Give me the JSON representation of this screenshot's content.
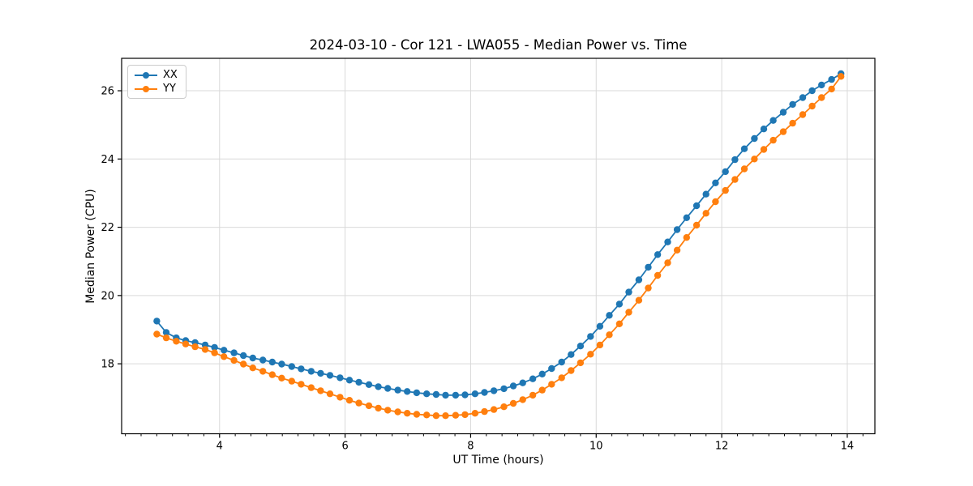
{
  "figure": {
    "title": "2024-03-10 - Cor 121 - LWA055 - Median Power vs. Time",
    "xlabel": "UT Time (hours)",
    "ylabel": "Median Power (CPU)"
  },
  "legend": {
    "items": [
      {
        "label": "XX",
        "color": "#1f77b4"
      },
      {
        "label": "YY",
        "color": "#ff7f0e"
      }
    ]
  },
  "chart_data": {
    "type": "line",
    "title": "2024-03-10 - Cor 121 - LWA055 - Median Power vs. Time",
    "xlabel": "UT Time (hours)",
    "ylabel": "Median Power (CPU)",
    "xlim": [
      2.44,
      14.44
    ],
    "ylim": [
      15.95,
      26.95
    ],
    "xticks": [
      4,
      6,
      8,
      10,
      12,
      14
    ],
    "x_minor_step": 0.25,
    "yticks": [
      18,
      20,
      22,
      24,
      26
    ],
    "grid": true,
    "grid_color": "#d9d9d9",
    "spine_color": "#000000",
    "legend_position": "upper left",
    "x": [
      3.0,
      3.15,
      3.31,
      3.46,
      3.61,
      3.77,
      3.92,
      4.07,
      4.23,
      4.38,
      4.53,
      4.69,
      4.84,
      4.99,
      5.15,
      5.3,
      5.46,
      5.61,
      5.76,
      5.92,
      6.07,
      6.22,
      6.38,
      6.53,
      6.68,
      6.84,
      6.99,
      7.14,
      7.3,
      7.45,
      7.6,
      7.76,
      7.91,
      8.07,
      8.22,
      8.37,
      8.53,
      8.68,
      8.83,
      8.99,
      9.14,
      9.29,
      9.45,
      9.6,
      9.75,
      9.91,
      10.06,
      10.21,
      10.37,
      10.52,
      10.68,
      10.83,
      10.98,
      11.14,
      11.29,
      11.44,
      11.6,
      11.75,
      11.9,
      12.06,
      12.21,
      12.36,
      12.52,
      12.67,
      12.82,
      12.98,
      13.13,
      13.29,
      13.44,
      13.59,
      13.75,
      13.9
    ],
    "series": [
      {
        "name": "XX",
        "color": "#1f77b4",
        "marker": "circle",
        "values": [
          19.25,
          18.92,
          18.76,
          18.68,
          18.62,
          18.55,
          18.48,
          18.4,
          18.32,
          18.24,
          18.17,
          18.11,
          18.05,
          17.99,
          17.92,
          17.85,
          17.78,
          17.72,
          17.66,
          17.59,
          17.52,
          17.46,
          17.39,
          17.33,
          17.28,
          17.23,
          17.19,
          17.15,
          17.12,
          17.1,
          17.08,
          17.08,
          17.09,
          17.12,
          17.16,
          17.21,
          17.27,
          17.35,
          17.44,
          17.56,
          17.7,
          17.86,
          18.05,
          18.27,
          18.52,
          18.8,
          19.1,
          19.42,
          19.75,
          20.1,
          20.46,
          20.83,
          21.2,
          21.57,
          21.93,
          22.28,
          22.63,
          22.97,
          23.3,
          23.63,
          23.98,
          24.3,
          24.6,
          24.88,
          25.13,
          25.37,
          25.6,
          25.8,
          26.0,
          26.17,
          26.33,
          26.5
        ]
      },
      {
        "name": "YY",
        "color": "#ff7f0e",
        "marker": "circle",
        "values": [
          18.87,
          18.76,
          18.66,
          18.58,
          18.5,
          18.42,
          18.32,
          18.21,
          18.1,
          17.99,
          17.88,
          17.78,
          17.68,
          17.58,
          17.49,
          17.4,
          17.3,
          17.21,
          17.12,
          17.02,
          16.93,
          16.85,
          16.77,
          16.7,
          16.64,
          16.59,
          16.55,
          16.52,
          16.5,
          16.48,
          16.48,
          16.49,
          16.51,
          16.55,
          16.6,
          16.66,
          16.74,
          16.84,
          16.95,
          17.08,
          17.23,
          17.4,
          17.59,
          17.8,
          18.03,
          18.28,
          18.55,
          18.85,
          19.17,
          19.51,
          19.86,
          20.22,
          20.59,
          20.96,
          21.33,
          21.7,
          22.06,
          22.41,
          22.75,
          23.08,
          23.4,
          23.71,
          24.0,
          24.28,
          24.55,
          24.8,
          25.05,
          25.3,
          25.55,
          25.8,
          26.05,
          26.42
        ]
      }
    ]
  }
}
